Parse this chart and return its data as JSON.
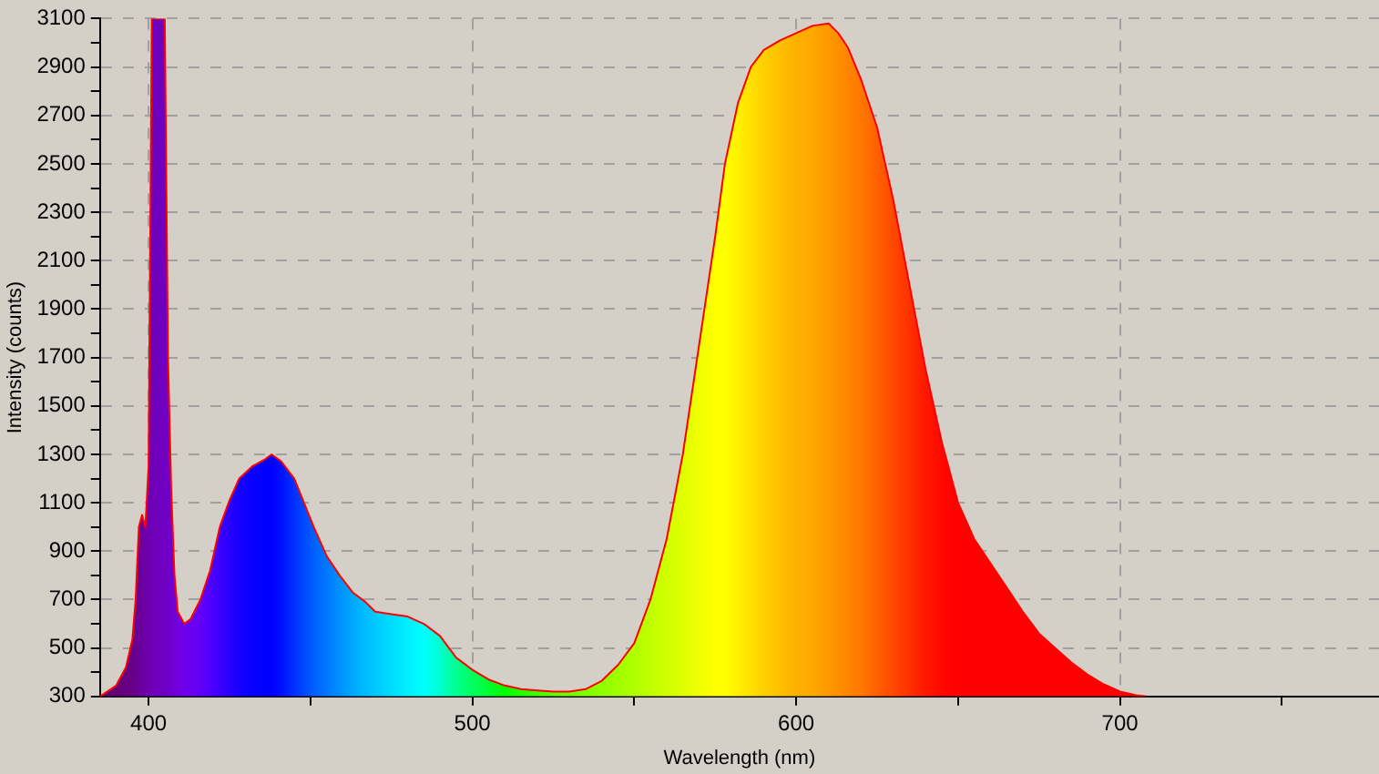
{
  "chart_data": {
    "type": "area",
    "xlabel": "Wavelength (nm)",
    "ylabel": "Intensity (counts)",
    "xlim": [
      385,
      780
    ],
    "ylim": [
      300,
      3100
    ],
    "xticks": [
      400,
      {
        "value": 450,
        "label": null
      },
      500,
      {
        "value": 550,
        "label": null
      },
      600,
      {
        "value": 650,
        "label": null
      },
      700,
      {
        "value": 750,
        "label": null
      }
    ],
    "yticks": [
      300,
      {
        "value": 400,
        "label": null
      },
      500,
      {
        "value": 600,
        "label": null
      },
      700,
      {
        "value": 800,
        "label": null
      },
      900,
      {
        "value": 1000,
        "label": null
      },
      1100,
      {
        "value": 1200,
        "label": null
      },
      1300,
      {
        "value": 1400,
        "label": null
      },
      1500,
      {
        "value": 1600,
        "label": null
      },
      1700,
      {
        "value": 1800,
        "label": null
      },
      1900,
      {
        "value": 2000,
        "label": null
      },
      2100,
      {
        "value": 2200,
        "label": null
      },
      2300,
      {
        "value": 2400,
        "label": null
      },
      2500,
      {
        "value": 2600,
        "label": null
      },
      2700,
      {
        "value": 2800,
        "label": null
      },
      2900,
      {
        "value": 3000,
        "label": null
      },
      3100
    ],
    "grid": true,
    "legend": false,
    "series": [
      {
        "color": "#ff0000",
        "x": [
          385,
          390,
          393,
          395,
          396,
          397,
          398,
          399,
          400,
          401,
          405,
          406,
          407,
          408,
          409,
          411,
          413,
          416,
          419,
          422,
          425,
          428,
          432,
          436,
          438,
          441,
          445,
          448,
          451,
          455,
          459,
          463,
          467,
          470,
          475,
          480,
          485,
          490,
          495,
          500,
          505,
          510,
          515,
          520,
          525,
          530,
          535,
          540,
          545,
          550,
          555,
          560,
          565,
          570,
          575,
          578,
          582,
          586,
          590,
          595,
          600,
          605,
          610,
          613,
          616,
          620,
          625,
          630,
          635,
          640,
          645,
          650,
          655,
          660,
          665,
          670,
          675,
          680,
          685,
          690,
          695,
          700,
          705,
          708
        ],
        "values": [
          300,
          345,
          420,
          535,
          700,
          1000,
          1050,
          1000,
          1250,
          3100,
          3100,
          1700,
          1150,
          800,
          650,
          600,
          620,
          700,
          820,
          1000,
          1110,
          1200,
          1250,
          1280,
          1300,
          1270,
          1200,
          1100,
          1000,
          880,
          800,
          730,
          690,
          650,
          640,
          630,
          600,
          550,
          460,
          410,
          370,
          345,
          330,
          325,
          320,
          320,
          330,
          365,
          430,
          520,
          700,
          950,
          1300,
          1750,
          2200,
          2500,
          2750,
          2900,
          2970,
          3010,
          3040,
          3070,
          3080,
          3040,
          2980,
          2850,
          2650,
          2350,
          2000,
          1650,
          1350,
          1100,
          950,
          850,
          750,
          650,
          560,
          500,
          440,
          390,
          350,
          320,
          305,
          300
        ],
        "colors": [
          "#600070",
          "#640078",
          "#660080",
          "#680088",
          "#6a0090",
          "#6a0098",
          "#6c00a0",
          "#6c00a8",
          "#6e00b0",
          "#6e00b8",
          "#7000c0",
          "#7000c8",
          "#7000d0",
          "#7000d8",
          "#7000e0",
          "#6e00e8",
          "#6c00f0",
          "#6400f8",
          "#5000ff",
          "#3c00ff",
          "#2800ff",
          "#1400ff",
          "#0800ff",
          "#0000ff",
          "#0000ff",
          "#0010ff",
          "#0030ff",
          "#0048ff",
          "#0060ff",
          "#0078ff",
          "#0090ff",
          "#00a8ff",
          "#00bcff",
          "#00c8ff",
          "#00dcff",
          "#00f0ff",
          "#00ffff",
          "#00ffd0",
          "#00ff90",
          "#00ff60",
          "#00ff30",
          "#00ff00",
          "#20ff00",
          "#40ff00",
          "#60ff00",
          "#70ff00",
          "#80ff00",
          "#90ff00",
          "#a0ff00",
          "#b0ff00",
          "#c0ff00",
          "#d0ff00",
          "#e0ff00",
          "#f0ff00",
          "#ffff00",
          "#ffff00",
          "#fff000",
          "#ffe000",
          "#ffd000",
          "#ffc000",
          "#ffb000",
          "#ffa800",
          "#ff9800",
          "#ff9000",
          "#ff8400",
          "#ff7800",
          "#ff6000",
          "#ff4800",
          "#ff3000",
          "#ff1800",
          "#ff0800",
          "#ff0000",
          "#ff0000",
          "#ff0000",
          "#ff0000",
          "#ff0000",
          "#ff0000",
          "#ff0000",
          "#ff0000",
          "#ff0000",
          "#ff0000",
          "#ff0000",
          "#ff0000",
          "#ff0000"
        ]
      }
    ]
  }
}
